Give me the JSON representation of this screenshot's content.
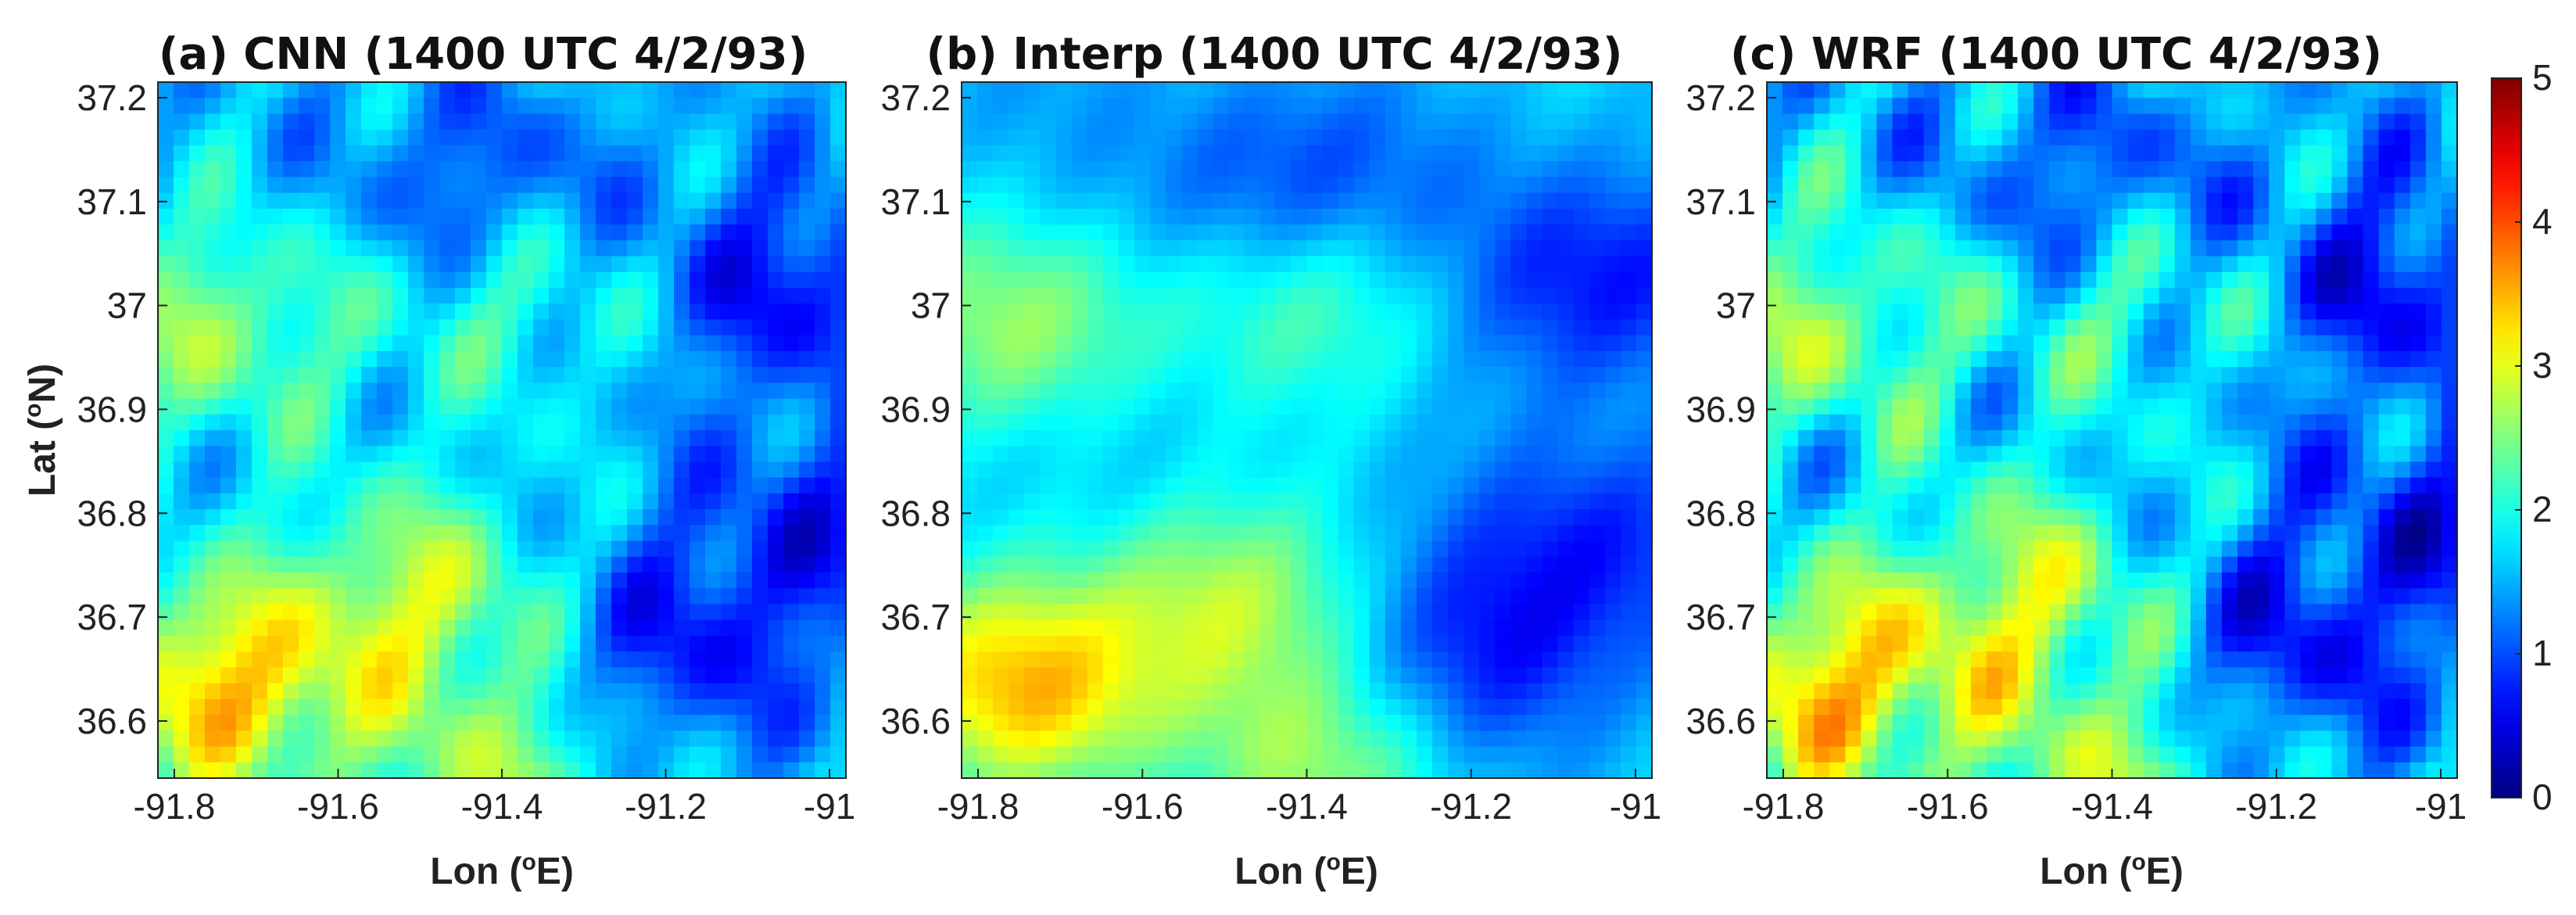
{
  "chart_data": {
    "type": "heatmap",
    "panels": [
      {
        "id": "a",
        "title": "(a) CNN (1400 UTC 4/2/93)"
      },
      {
        "id": "b",
        "title": "(b) Interp (1400 UTC 4/2/93)"
      },
      {
        "id": "c",
        "title": "(c) WRF (1400 UTC 4/2/93)"
      }
    ],
    "x_label": {
      "prefix": "Lon (",
      "sup": "o",
      "suffix": "E)"
    },
    "y_label": {
      "prefix": "Lat (",
      "sup": "o",
      "suffix": "N)"
    },
    "xlim": [
      -91.82,
      -90.98
    ],
    "ylim": [
      36.545,
      37.215
    ],
    "x_ticks": [
      "-91.8",
      "-91.6",
      "-91.4",
      "-91.2",
      "-91"
    ],
    "x_tick_values": [
      -91.8,
      -91.6,
      -91.4,
      -91.2,
      -91.0
    ],
    "y_ticks": [
      "37.2",
      "37.1",
      "37",
      "36.9",
      "36.8",
      "36.7",
      "36.6"
    ],
    "y_tick_values": [
      37.2,
      37.1,
      37.0,
      36.9,
      36.8,
      36.7,
      36.6
    ],
    "colorbar": {
      "range": [
        0,
        5
      ],
      "ticks": [
        "0",
        "1",
        "2",
        "3",
        "4",
        "5"
      ],
      "tick_values": [
        0,
        1,
        2,
        3,
        4,
        5
      ],
      "colormap": "jet"
    },
    "grid": false,
    "approx_values_note": "",
    "field_features": [
      {
        "lon": -91.75,
        "lat": 36.63,
        "value": 3.4
      },
      {
        "lon": -91.5,
        "lat": 36.72,
        "value": 2.8
      },
      {
        "lon": -91.75,
        "lat": 36.98,
        "value": 2.6
      },
      {
        "lon": -91.38,
        "lat": 37.02,
        "value": 2.4
      },
      {
        "lon": -91.05,
        "lat": 37.02,
        "value": 0.6
      },
      {
        "lon": -91.02,
        "lat": 36.78,
        "value": 0.8
      },
      {
        "lon": -91.42,
        "lat": 37.1,
        "value": 0.7
      },
      {
        "lon": -91.2,
        "lat": 36.66,
        "value": 0.7
      },
      {
        "lon": -91.4,
        "lat": 36.55,
        "value": 2.6
      }
    ]
  }
}
